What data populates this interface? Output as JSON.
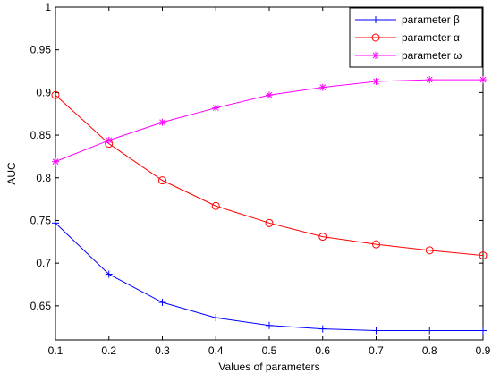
{
  "chart_data": {
    "type": "line",
    "xlabel": "Values of parameters",
    "ylabel": "AUC",
    "xlim": [
      0.1,
      0.9
    ],
    "ylim": [
      0.61,
      1.0
    ],
    "xticks": [
      0.1,
      0.2,
      0.3,
      0.4,
      0.5,
      0.6,
      0.7,
      0.8,
      0.9
    ],
    "xtick_labels": [
      "0.1",
      "0.2",
      "0.3",
      "0.4",
      "0.5",
      "0.6",
      "0.7",
      "0.8",
      "0.9"
    ],
    "yticks": [
      0.65,
      0.7,
      0.75,
      0.8,
      0.85,
      0.9,
      0.95,
      1.0
    ],
    "ytick_labels": [
      "0.65",
      "0.7",
      "0.75",
      "0.8",
      "0.85",
      "0.9",
      "0.95",
      "1"
    ],
    "grid": false,
    "legend_position": "top-right",
    "x": [
      0.1,
      0.2,
      0.3,
      0.4,
      0.5,
      0.6,
      0.7,
      0.8,
      0.9
    ],
    "series": [
      {
        "name": "parameter β",
        "color": "#0000ff",
        "marker": "plus",
        "values": [
          0.747,
          0.687,
          0.654,
          0.636,
          0.627,
          0.623,
          0.621,
          0.621,
          0.621
        ]
      },
      {
        "name": "parameter α",
        "color": "#ff0000",
        "marker": "circle",
        "values": [
          0.897,
          0.84,
          0.797,
          0.767,
          0.747,
          0.731,
          0.722,
          0.715,
          0.709
        ]
      },
      {
        "name": "parameter ω",
        "color": "#ff00ff",
        "marker": "star",
        "values": [
          0.819,
          0.844,
          0.865,
          0.882,
          0.897,
          0.906,
          0.913,
          0.915,
          0.915
        ]
      }
    ]
  }
}
